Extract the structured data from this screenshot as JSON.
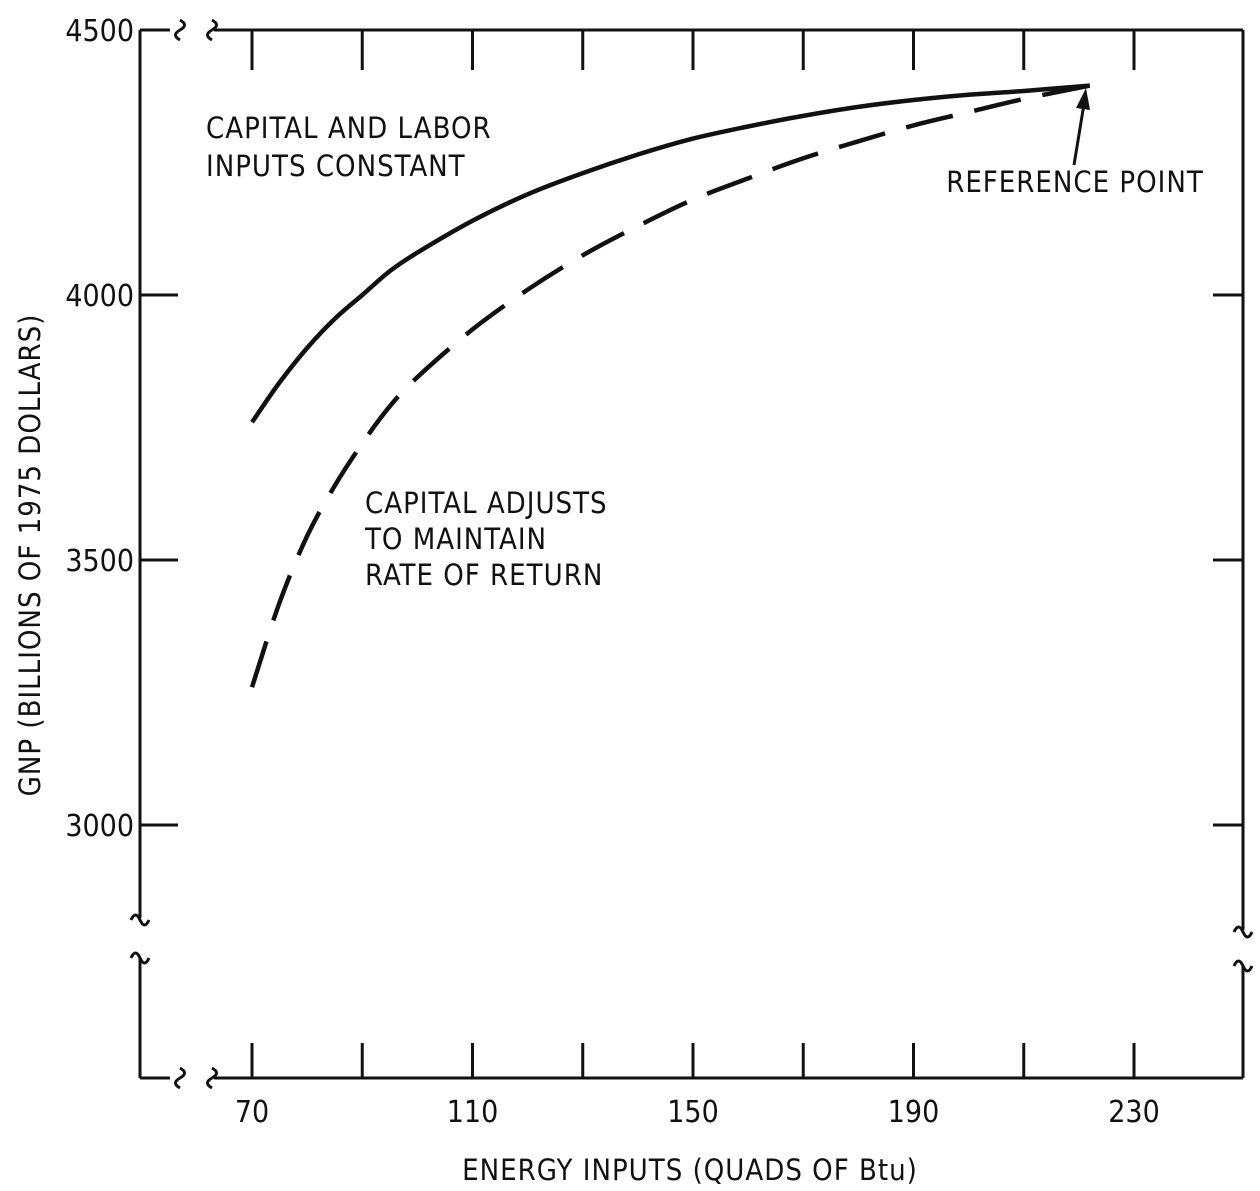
{
  "chart_data": {
    "type": "line",
    "xlabel": "ENERGY INPUTS (QUADS OF Btu)",
    "ylabel": "GNP (BILLIONS OF 1975 DOLLARS)",
    "xlim": [
      65,
      250
    ],
    "ylim": [
      2600,
      4500
    ],
    "x_ticks": [
      "70",
      "110",
      "150",
      "190",
      "230"
    ],
    "y_ticks": [
      "3000",
      "3500",
      "4000",
      "4500"
    ],
    "axis_breaks": true,
    "grid": false,
    "series": [
      {
        "name": "CAPITAL AND LABOR INPUTS CONSTANT",
        "style": "solid",
        "x": [
          70,
          75,
          80,
          85,
          90,
          95,
          100,
          110,
          120,
          130,
          140,
          150,
          160,
          170,
          180,
          190,
          200,
          210,
          222
        ],
        "y": [
          3760,
          3835,
          3900,
          3955,
          4000,
          4045,
          4080,
          4140,
          4190,
          4230,
          4265,
          4295,
          4318,
          4338,
          4355,
          4368,
          4378,
          4385,
          4395
        ]
      },
      {
        "name": "CAPITAL ADJUSTS TO MAINTAIN RATE OF RETURN",
        "style": "dashed",
        "x": [
          70,
          75,
          80,
          85,
          90,
          95,
          100,
          110,
          120,
          130,
          140,
          150,
          160,
          170,
          180,
          190,
          200,
          210,
          222
        ],
        "y": [
          3260,
          3420,
          3545,
          3640,
          3720,
          3790,
          3845,
          3935,
          4010,
          4075,
          4130,
          4180,
          4220,
          4258,
          4290,
          4320,
          4345,
          4370,
          4395
        ]
      }
    ],
    "annotations": [
      {
        "lines": [
          "CAPITAL AND LABOR",
          "INPUTS CONSTANT"
        ]
      },
      {
        "lines": [
          "CAPITAL ADJUSTS",
          "TO MAINTAIN",
          "RATE OF RETURN"
        ]
      },
      {
        "lines": [
          "REFERENCE POINT"
        ]
      }
    ]
  }
}
